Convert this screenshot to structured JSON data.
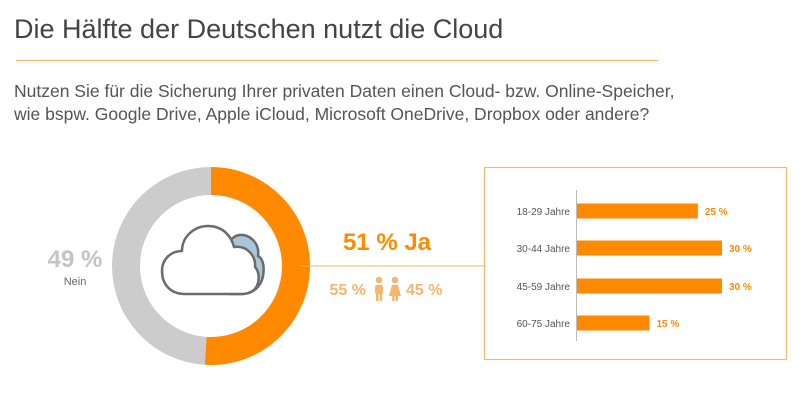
{
  "title": "Die Hälfte der Deutschen nutzt die Cloud",
  "question": {
    "line1": "Nutzen Sie für die Sicherung Ihrer privaten Daten einen Cloud- bzw. Online-Speicher,",
    "line2": "wie bspw. Google Drive, Apple iCloud, Microsoft OneDrive, Dropbox oder andere?"
  },
  "colors": {
    "accent": "#ff8a00",
    "accent_light": "#f5b66e",
    "grey": "#cccccc",
    "grey_text": "#c4c4c4",
    "cloud_fill": "#a9c6da"
  },
  "chart_data": [
    {
      "type": "pie",
      "variant": "donut",
      "categories": [
        "Ja",
        "Nein"
      ],
      "values": [
        51,
        49
      ],
      "labels": {
        "yes": "51 % Ja",
        "no_value": "49 %",
        "no_label": "Nein"
      },
      "gender": {
        "male": "55 %",
        "female": "45 %"
      }
    },
    {
      "type": "bar",
      "orientation": "horizontal",
      "categories": [
        "18-29 Jahre",
        "30-44 Jahre",
        "45-59 Jahre",
        "60-75 Jahre"
      ],
      "values": [
        25,
        30,
        30,
        15
      ],
      "value_labels": [
        "25 %",
        "30 %",
        "30 %",
        "15 %"
      ],
      "xlim": [
        0,
        30
      ]
    }
  ]
}
